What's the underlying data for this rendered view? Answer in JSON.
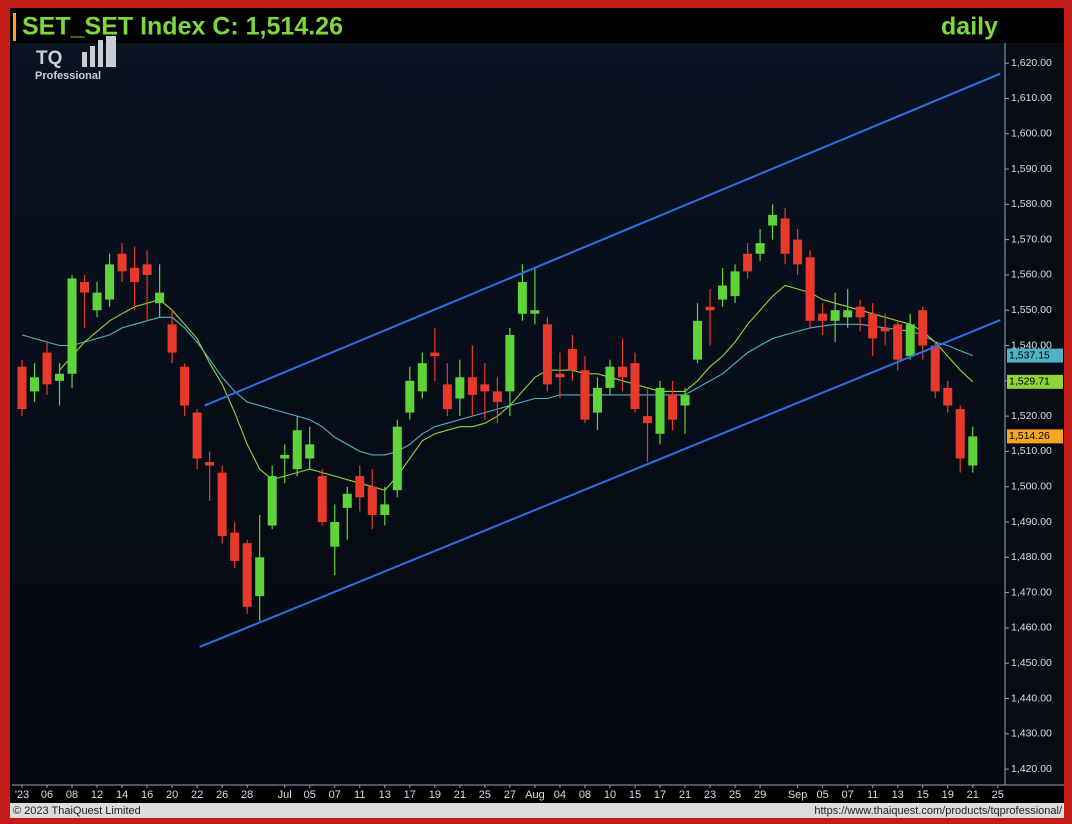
{
  "header": {
    "title": "SET_SET Index C: 1,514.26",
    "period": "daily",
    "logo": "TQ",
    "logo_sub": "Professional"
  },
  "chart_data": {
    "type": "candlestick",
    "categories": [
      "'23",
      null,
      "06",
      null,
      "08",
      null,
      "12",
      null,
      "14",
      null,
      "16",
      null,
      "20",
      null,
      "22",
      null,
      "26",
      null,
      "28",
      null,
      null,
      "Jul",
      null,
      "05",
      null,
      "07",
      null,
      "11",
      null,
      "13",
      null,
      "17",
      null,
      "19",
      null,
      "21",
      null,
      "25",
      null,
      "27",
      null,
      "Aug",
      null,
      "04",
      null,
      "08",
      null,
      "10",
      null,
      "15",
      null,
      "17",
      null,
      "21",
      null,
      "23",
      null,
      "25",
      null,
      "29",
      null,
      null,
      "Sep",
      null,
      "05",
      null,
      "07",
      null,
      "11",
      null,
      "13",
      null,
      "15",
      null,
      "19",
      null,
      "21",
      null,
      "25"
    ],
    "open": [
      1534,
      1527,
      1538,
      1530,
      1532,
      1558,
      1550,
      1553,
      1566,
      1562,
      1563,
      1552,
      1546,
      1534,
      1521,
      1507,
      1504,
      1487,
      1484,
      1469,
      1489,
      1508,
      1505,
      1508,
      1503,
      1483,
      1494,
      1503,
      1500,
      1492,
      1499,
      1521,
      1527,
      1538,
      1529,
      1525,
      1531,
      1529,
      1527,
      1527,
      1549,
      1549,
      1546,
      1532,
      1539,
      1533,
      1521,
      1528,
      1534,
      1535,
      1520,
      1515,
      1526,
      1523,
      1536,
      1551,
      1553,
      1554,
      1566,
      1566,
      1574,
      1576,
      1570,
      1565,
      1549,
      1547,
      1548,
      1551,
      1549,
      1545,
      1546,
      1537,
      1550,
      1540,
      1528,
      1522,
      1506,
      null,
      null
    ],
    "high": [
      1536,
      1535,
      1541,
      1535,
      1560,
      1560,
      1558,
      1566,
      1569,
      1568,
      1567,
      1563,
      1550,
      1535,
      1522,
      1510,
      1506,
      1490,
      1485,
      1492,
      1506,
      1512,
      1520,
      1517,
      1505,
      1495,
      1500,
      1506,
      1505,
      1500,
      1519,
      1534,
      1538,
      1545,
      1535,
      1536,
      1540,
      1535,
      1531,
      1545,
      1563,
      1562,
      1548,
      1538,
      1543,
      1537,
      1531,
      1536,
      1542,
      1538,
      1528,
      1530,
      1530,
      1528,
      1552,
      1556,
      1562,
      1563,
      1569,
      1573,
      1580,
      1579,
      1573,
      1567,
      1552,
      1555,
      1556,
      1553,
      1552,
      1549,
      1547,
      1549,
      1551,
      1541,
      1530,
      1523,
      1517,
      null,
      null
    ],
    "low": [
      1520,
      1524,
      1526,
      1523,
      1528,
      1545,
      1548,
      1551,
      1558,
      1550,
      1547,
      1548,
      1535,
      1520,
      1505,
      1496,
      1484,
      1477,
      1464,
      1462,
      1488,
      1501,
      1503,
      1505,
      1489,
      1475,
      1485,
      1493,
      1488,
      1489,
      1497,
      1519,
      1525,
      1530,
      1520,
      1520,
      1520,
      1519,
      1518,
      1520,
      1547,
      1546,
      1527,
      1525,
      1530,
      1518,
      1516,
      1526,
      1527,
      1521,
      1507,
      1512,
      1516,
      1515,
      1535,
      1540,
      1551,
      1552,
      1559,
      1564,
      1570,
      1563,
      1560,
      1545,
      1543,
      1541,
      1545,
      1544,
      1537,
      1540,
      1533,
      1536,
      1536,
      1525,
      1521,
      1504,
      1504,
      null,
      null
    ],
    "close": [
      1522,
      1531,
      1529,
      1532,
      1559,
      1555,
      1555,
      1563,
      1561,
      1558,
      1560,
      1555,
      1538,
      1523,
      1508,
      1506,
      1486,
      1479,
      1466,
      1480,
      1503,
      1509,
      1516,
      1512,
      1490,
      1490,
      1498,
      1497,
      1492,
      1495,
      1517,
      1530,
      1535,
      1537,
      1522,
      1531,
      1526,
      1527,
      1524,
      1543,
      1558,
      1550,
      1529,
      1531,
      1533,
      1519,
      1528,
      1534,
      1531,
      1522,
      1518,
      1528,
      1519,
      1526,
      1547,
      1550,
      1557,
      1561,
      1561,
      1569,
      1577,
      1566,
      1563,
      1547,
      1547,
      1550,
      1550,
      1548,
      1542,
      1544,
      1536,
      1546,
      1540,
      1527,
      1523,
      1508,
      1514.26,
      null,
      null
    ],
    "up_color": "#5ed43a",
    "down_color": "#e83a2c",
    "last_label": "1,514.26",
    "last_label_color": "#f5a623",
    "series": [
      {
        "color": "#4fb3c4",
        "last_label": "1,537.15",
        "values": [
          1543,
          1542,
          1541,
          1540,
          1540,
          1541,
          1542,
          1543,
          1545,
          1546,
          1547,
          1548,
          1548,
          1545,
          1541,
          1536,
          1531,
          1527,
          1524,
          1523,
          1522,
          1521,
          1520,
          1519,
          1517,
          1514,
          1512,
          1510,
          1509,
          1509,
          1510,
          1512,
          1515,
          1517,
          1518,
          1519,
          1520,
          1521,
          1522,
          1523,
          1524,
          1525,
          1525,
          1526,
          1526,
          1526,
          1526,
          1526,
          1526,
          1526,
          1526,
          1526,
          1526,
          1526,
          1528,
          1530,
          1532,
          1535,
          1538,
          1540,
          1542,
          1543,
          1544,
          1545,
          1545.5,
          1546,
          1546,
          1546,
          1545.5,
          1545,
          1544.5,
          1544,
          1543,
          1541,
          1540,
          1538.5,
          1537.15,
          null,
          null
        ]
      },
      {
        "color": "#8fd43a",
        "last_label": "1,529.71",
        "values": [
          null,
          null,
          null,
          1533,
          1537,
          1541,
          1544,
          1547,
          1549,
          1551,
          1552,
          1553,
          1550,
          1546,
          1542,
          1535,
          1529,
          1521,
          1512,
          1505,
          1502,
          1503,
          1504,
          1505,
          1504,
          1503,
          1502,
          1501,
          1500,
          1499,
          1503,
          1508,
          1513,
          1515,
          1516,
          1517,
          1517,
          1518,
          1520,
          1523,
          1527,
          1531,
          1533,
          1533,
          1533,
          1532,
          1532,
          1531,
          1530,
          1529,
          1528,
          1527,
          1527,
          1527,
          1530,
          1534,
          1537,
          1541,
          1546,
          1550,
          1554,
          1557,
          1556,
          1555,
          1553,
          1552,
          1551,
          1550,
          1549,
          1548,
          1547,
          1546,
          1544,
          1541,
          1537,
          1533,
          1529.71,
          null,
          null
        ]
      }
    ],
    "trendlines": [
      {
        "color": "#2f6fe6",
        "x": [
          14.6,
          78.2
        ],
        "values": [
          1523,
          1617
        ]
      },
      {
        "color": "#2f6fe6",
        "x": [
          14.2,
          78.2
        ],
        "values": [
          1454.6,
          1547.2
        ]
      }
    ],
    "ylim": [
      1415.5,
      1625.7
    ],
    "yticks": [
      {
        "value": 1420,
        "label": "1,420.00"
      },
      {
        "value": 1430,
        "label": "1,430.00"
      },
      {
        "value": 1440,
        "label": "1,440.00"
      },
      {
        "value": 1450,
        "label": "1,450.00"
      },
      {
        "value": 1460,
        "label": "1,460.00"
      },
      {
        "value": 1470,
        "label": "1,470.00"
      },
      {
        "value": 1480,
        "label": "1,480.00"
      },
      {
        "value": 1490,
        "label": "1,490.00"
      },
      {
        "value": 1500,
        "label": "1,500.00"
      },
      {
        "value": 1510,
        "label": "1,510.00"
      },
      {
        "value": 1520,
        "label": "1,520.00"
      },
      {
        "value": 1530,
        "label": "1,530.00"
      },
      {
        "value": 1540,
        "label": "1,540.00"
      },
      {
        "value": 1550,
        "label": "1,550.00"
      },
      {
        "value": 1560,
        "label": "1,560.00"
      },
      {
        "value": 1570,
        "label": "1,570.00"
      },
      {
        "value": 1580,
        "label": "1,580.00"
      },
      {
        "value": 1590,
        "label": "1,590.00"
      },
      {
        "value": 1600,
        "label": "1,600.00"
      },
      {
        "value": 1610,
        "label": "1,610.00"
      },
      {
        "value": 1620,
        "label": "1,620.00"
      }
    ]
  },
  "footer": {
    "copyright": "© 2023 ThaiQuest Limited",
    "url": "https://www.thaiquest.com/products/tqprofessional/"
  }
}
